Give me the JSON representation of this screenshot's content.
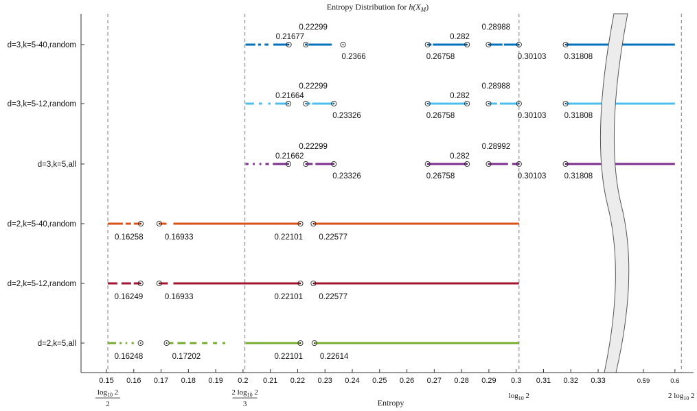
{
  "chart_data": {
    "type": "line",
    "title": "Entropy Distribution for h(X_M)",
    "title_main": "Entropy Distribution for ",
    "title_math": "h(X",
    "title_sub": "M",
    "title_tail": ")",
    "xlabel": "Entropy",
    "xlim": [
      0.14,
      0.61
    ],
    "axis_break": "between 0.33 and 0.59",
    "xticks": [
      "0.15",
      "0.16",
      "0.17",
      "0.18",
      "0.19",
      "0.2",
      "0.21",
      "0.22",
      "0.23",
      "0.24",
      "0.25",
      "0.26",
      "0.27",
      "0.28",
      "0.29",
      "0.3",
      "0.31",
      "0.32",
      "0.33",
      "0.59",
      "0.6"
    ],
    "reference_lines": [
      {
        "x": 0.150515,
        "label_num": "log",
        "label_sub": "10",
        "label_arg": "2",
        "label_den": "2"
      },
      {
        "x": 0.200687,
        "label_num": "2 log",
        "label_sub": "10",
        "label_arg": "2",
        "label_den": "3"
      },
      {
        "x": 0.30103,
        "label": "log",
        "label_sub": "10",
        "label_arg": "2"
      },
      {
        "x": 0.60206,
        "label": "2 log",
        "label_sub": "10",
        "label_arg": "2"
      }
    ],
    "series": [
      {
        "name": "d=3,k=5-40,random",
        "color": "#0072BD",
        "dashes": [
          [
            0.2009,
            0.2045
          ],
          [
            0.2055,
            0.2066
          ],
          [
            0.2079,
            0.2093
          ],
          [
            0.2111,
            0.2168
          ],
          [
            0.2227,
            0.2236
          ],
          [
            0.2241,
            0.2325
          ],
          [
            0.2676,
            0.269
          ],
          [
            0.2695,
            0.282
          ],
          [
            0.2899,
            0.295
          ],
          [
            0.2955,
            0.301
          ],
          [
            0.31808,
            0.6
          ]
        ],
        "markers": [
          0.21677,
          0.22299,
          0.2366,
          0.26758,
          0.282,
          0.28988,
          0.30103,
          0.31808
        ],
        "labels": [
          {
            "x": 0.21677,
            "text": "0.21677",
            "pos": "above"
          },
          {
            "x": 0.22299,
            "text": "0.22299",
            "pos": "top"
          },
          {
            "x": 0.2366,
            "text": "0.2366",
            "pos": "below"
          },
          {
            "x": 0.26758,
            "text": "0.26758",
            "pos": "below"
          },
          {
            "x": 0.282,
            "text": "0.282",
            "pos": "above-left"
          },
          {
            "x": 0.28988,
            "text": "0.28988",
            "pos": "top"
          },
          {
            "x": 0.30103,
            "text": "0.30103",
            "pos": "below"
          },
          {
            "x": 0.31808,
            "text": "0.31808",
            "pos": "below"
          }
        ]
      },
      {
        "name": "d=3,k=5-12,random",
        "color": "#4DBEEE",
        "dashes": [
          [
            0.2009,
            0.204
          ],
          [
            0.2058,
            0.207
          ],
          [
            0.2092,
            0.2101
          ],
          [
            0.2118,
            0.2166
          ],
          [
            0.223,
            0.2247
          ],
          [
            0.2253,
            0.2333
          ],
          [
            0.2676,
            0.282
          ],
          [
            0.2899,
            0.293
          ],
          [
            0.294,
            0.301
          ],
          [
            0.31808,
            0.6
          ]
        ],
        "markers": [
          0.21664,
          0.22299,
          0.23326,
          0.26758,
          0.282,
          0.28988,
          0.30103,
          0.31808
        ],
        "labels": [
          {
            "x": 0.21664,
            "text": "0.21664",
            "pos": "above"
          },
          {
            "x": 0.22299,
            "text": "0.22299",
            "pos": "top"
          },
          {
            "x": 0.23326,
            "text": "0.23326",
            "pos": "below"
          },
          {
            "x": 0.26758,
            "text": "0.26758",
            "pos": "below"
          },
          {
            "x": 0.282,
            "text": "0.282",
            "pos": "above-left"
          },
          {
            "x": 0.28988,
            "text": "0.28988",
            "pos": "top"
          },
          {
            "x": 0.30103,
            "text": "0.30103",
            "pos": "below"
          },
          {
            "x": 0.31808,
            "text": "0.31808",
            "pos": "below"
          }
        ]
      },
      {
        "name": "d=3,k=5,all",
        "color": "#7E2F8E",
        "dashes": [
          [
            0.2009,
            0.202
          ],
          [
            0.2036,
            0.2043
          ],
          [
            0.206,
            0.2067
          ],
          [
            0.2082,
            0.2095
          ],
          [
            0.2109,
            0.2166
          ],
          [
            0.223,
            0.2255
          ],
          [
            0.2265,
            0.2333
          ],
          [
            0.2676,
            0.282
          ],
          [
            0.2899,
            0.297
          ],
          [
            0.2985,
            0.301
          ],
          [
            0.31808,
            0.6
          ]
        ],
        "markers": [
          0.21662,
          0.22299,
          0.23326,
          0.26758,
          0.282,
          0.28992,
          0.30103,
          0.31808
        ],
        "labels": [
          {
            "x": 0.21662,
            "text": "0.21662",
            "pos": "above"
          },
          {
            "x": 0.22299,
            "text": "0.22299",
            "pos": "top"
          },
          {
            "x": 0.23326,
            "text": "0.23326",
            "pos": "below"
          },
          {
            "x": 0.26758,
            "text": "0.26758",
            "pos": "below"
          },
          {
            "x": 0.282,
            "text": "0.282",
            "pos": "above-left"
          },
          {
            "x": 0.28992,
            "text": "0.28992",
            "pos": "top"
          },
          {
            "x": 0.30103,
            "text": "0.30103",
            "pos": "below"
          },
          {
            "x": 0.31808,
            "text": "0.31808",
            "pos": "below"
          }
        ]
      },
      {
        "name": "d=2,k=5-40,random",
        "color": "#D95319",
        "dashes": [
          [
            0.1505,
            0.156
          ],
          [
            0.157,
            0.159
          ],
          [
            0.16,
            0.1626
          ],
          [
            0.1693,
            0.172
          ],
          [
            0.1745,
            0.221
          ],
          [
            0.22577,
            0.30103
          ]
        ],
        "markers": [
          0.16258,
          0.16933,
          0.22101,
          0.22577
        ],
        "labels": [
          {
            "x": 0.16258,
            "text": "0.16258",
            "pos": "below-left"
          },
          {
            "x": 0.16933,
            "text": "0.16933",
            "pos": "below-right"
          },
          {
            "x": 0.22101,
            "text": "0.22101",
            "pos": "below-left"
          },
          {
            "x": 0.22577,
            "text": "0.22577",
            "pos": "below-right"
          }
        ]
      },
      {
        "name": "d=2,k=5-12,random",
        "color": "#A2142F",
        "dashes": [
          [
            0.1505,
            0.154
          ],
          [
            0.1555,
            0.159
          ],
          [
            0.16,
            0.1625
          ],
          [
            0.1693,
            0.1725
          ],
          [
            0.1745,
            0.221
          ],
          [
            0.22577,
            0.30103
          ]
        ],
        "markers": [
          0.16249,
          0.16933,
          0.22101,
          0.22577
        ],
        "labels": [
          {
            "x": 0.16249,
            "text": "0.16249",
            "pos": "below-left"
          },
          {
            "x": 0.16933,
            "text": "0.16933",
            "pos": "below-right"
          },
          {
            "x": 0.22101,
            "text": "0.22101",
            "pos": "below-left"
          },
          {
            "x": 0.22577,
            "text": "0.22577",
            "pos": "below-right"
          }
        ]
      },
      {
        "name": "d=2,k=5,all",
        "color": "#77AC30",
        "dashes": [
          [
            0.1505,
            0.1535
          ],
          [
            0.1548,
            0.1556
          ],
          [
            0.157,
            0.1576
          ],
          [
            0.1592,
            0.16
          ],
          [
            0.173,
            0.1745
          ],
          [
            0.176,
            0.179
          ],
          [
            0.1805,
            0.183
          ],
          [
            0.185,
            0.187
          ],
          [
            0.189,
            0.1905
          ],
          [
            0.1925,
            0.1935
          ],
          [
            0.2009,
            0.221
          ],
          [
            0.2262,
            0.30103
          ]
        ],
        "markers": [
          0.16248,
          0.17202,
          0.22101,
          0.22614
        ],
        "labels": [
          {
            "x": 0.16248,
            "text": "0.16248",
            "pos": "below-left"
          },
          {
            "x": 0.17202,
            "text": "0.17202",
            "pos": "below-right"
          },
          {
            "x": 0.22101,
            "text": "0.22101",
            "pos": "below-left"
          },
          {
            "x": 0.22614,
            "text": "0.22614",
            "pos": "below-right"
          }
        ]
      }
    ]
  }
}
